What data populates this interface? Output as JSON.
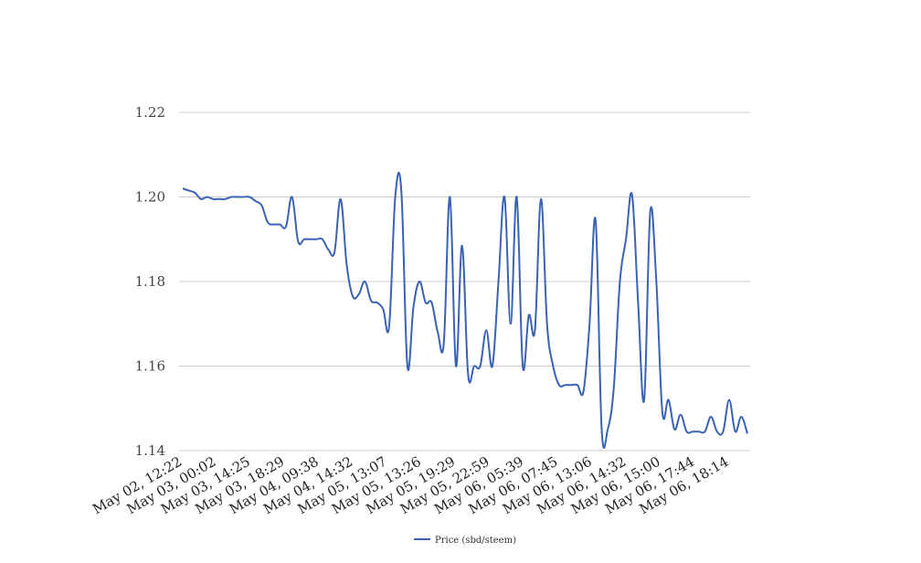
{
  "chart_data": {
    "type": "line",
    "title": "",
    "xlabel": "",
    "ylabel": "",
    "ylim": [
      1.14,
      1.22
    ],
    "yticks": [
      "1.14",
      "1.16",
      "1.18",
      "1.20",
      "1.22"
    ],
    "ytick_values": [
      1.14,
      1.16,
      1.18,
      1.2,
      1.22
    ],
    "grid": true,
    "legend_position": "bottom",
    "line_color": "#3a62b3",
    "x_tick_labels": [
      "May 02, 12:22",
      "May 03, 00:02",
      "May 03, 14:25",
      "May 03, 18:29",
      "May 04, 09:38",
      "May 04, 14:32",
      "May 05, 13:07",
      "May 05, 13:26",
      "May 05, 19:29",
      "May 05, 22:59",
      "May 06, 05:39",
      "May 06, 07:45",
      "May 06, 13:06",
      "May 06, 14:32",
      "May 06, 15:00",
      "May 06, 17:44",
      "May 06, 18:14"
    ],
    "series": [
      {
        "name": "Price (sbd/steem)",
        "values": [
          1.202,
          1.2015,
          1.201,
          1.1995,
          1.2,
          1.1995,
          1.1995,
          1.1995,
          1.2,
          1.2,
          1.2,
          1.2,
          1.199,
          1.198,
          1.194,
          1.1935,
          1.1935,
          1.193,
          1.2,
          1.1895,
          1.19,
          1.19,
          1.19,
          1.19,
          1.1875,
          1.187,
          1.1995,
          1.184,
          1.1765,
          1.177,
          1.18,
          1.1755,
          1.175,
          1.1735,
          1.1695,
          1.2,
          1.2015,
          1.16,
          1.174,
          1.18,
          1.175,
          1.175,
          1.168,
          1.1655,
          1.2,
          1.16,
          1.1885,
          1.158,
          1.16,
          1.16,
          1.1685,
          1.16,
          1.18,
          1.2,
          1.17,
          1.2,
          1.16,
          1.172,
          1.1685,
          1.1995,
          1.17,
          1.16,
          1.1555,
          1.1555,
          1.1555,
          1.1555,
          1.154,
          1.17,
          1.1945,
          1.145,
          1.145,
          1.155,
          1.18,
          1.19,
          1.2005,
          1.175,
          1.152,
          1.1965,
          1.18,
          1.149,
          1.152,
          1.145,
          1.1485,
          1.1445,
          1.1445,
          1.1445,
          1.1445,
          1.148,
          1.1445,
          1.1445,
          1.152,
          1.1445,
          1.148,
          1.144
        ]
      }
    ]
  }
}
